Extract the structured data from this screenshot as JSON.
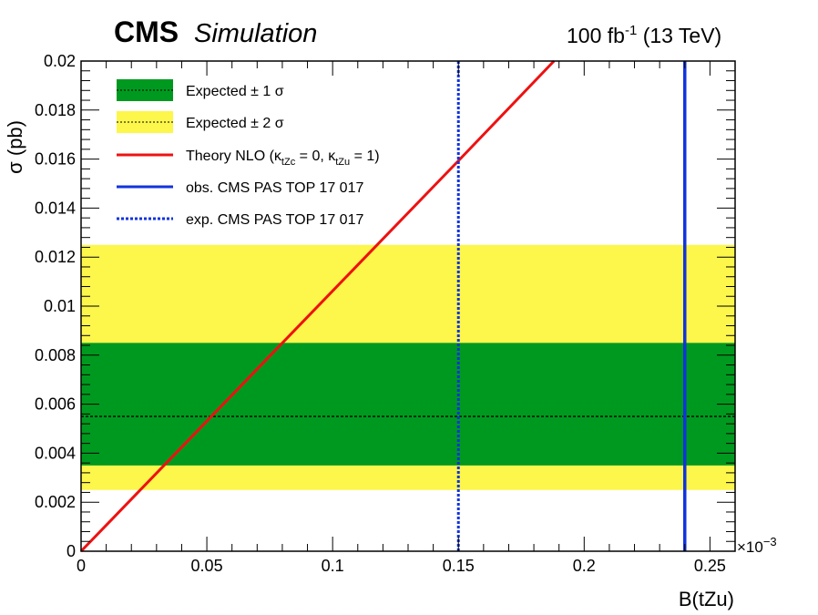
{
  "header": {
    "experiment": "CMS",
    "label": "Simulation",
    "lumi_value": "100 fb",
    "lumi_exponent": "-1",
    "energy": "(13 TeV)"
  },
  "chart_data": {
    "type": "line",
    "title": "",
    "xlabel": "B(tZu)",
    "ylabel": "σ (pb)",
    "x_multiplier": "×10",
    "x_multiplier_exponent": "−3",
    "xlim": [
      0,
      0.26
    ],
    "ylim": [
      0,
      0.02
    ],
    "x_ticks": [
      0,
      0.05,
      0.1,
      0.15,
      0.2,
      0.25
    ],
    "x_tick_labels": [
      "0",
      "0.05",
      "0.1",
      "0.15",
      "0.2",
      "0.25"
    ],
    "y_ticks": [
      0,
      0.002,
      0.004,
      0.006,
      0.008,
      0.01,
      0.012,
      0.014,
      0.016,
      0.018,
      0.02
    ],
    "y_tick_labels": [
      "0",
      "0.002",
      "0.004",
      "0.006",
      "0.008",
      "0.01",
      "0.012",
      "0.014",
      "0.016",
      "0.018",
      "0.02"
    ],
    "grid": false,
    "legend_position": "top-left",
    "expected_limit": 0.0055,
    "band_1sigma": [
      0.0035,
      0.0085
    ],
    "band_2sigma": [
      0.0025,
      0.0125
    ],
    "theory_nlo": {
      "x": [
        0,
        0.05,
        0.1,
        0.15,
        0.188
      ],
      "y": [
        0,
        0.00531,
        0.01062,
        0.01593,
        0.02
      ]
    },
    "obs_limit_x": 0.24,
    "exp_limit_x": 0.15,
    "colors": {
      "band_1sigma": "#00991f",
      "band_2sigma": "#fdf64b",
      "theory": "#ee1111",
      "limits": "#1133dd",
      "expected_line": "#000000"
    },
    "legend": [
      {
        "key": "band1",
        "label": "Expected ± 1 σ"
      },
      {
        "key": "band2",
        "label": "Expected ± 2 σ"
      },
      {
        "key": "theory",
        "label": "Theory NLO (κ",
        "sub1": "tZc",
        "mid": " = 0, κ",
        "sub2": "tZu",
        "end": " = 1)"
      },
      {
        "key": "obs",
        "label": "obs. CMS PAS TOP 17 017"
      },
      {
        "key": "exp",
        "label": "exp. CMS PAS TOP 17 017"
      }
    ]
  }
}
